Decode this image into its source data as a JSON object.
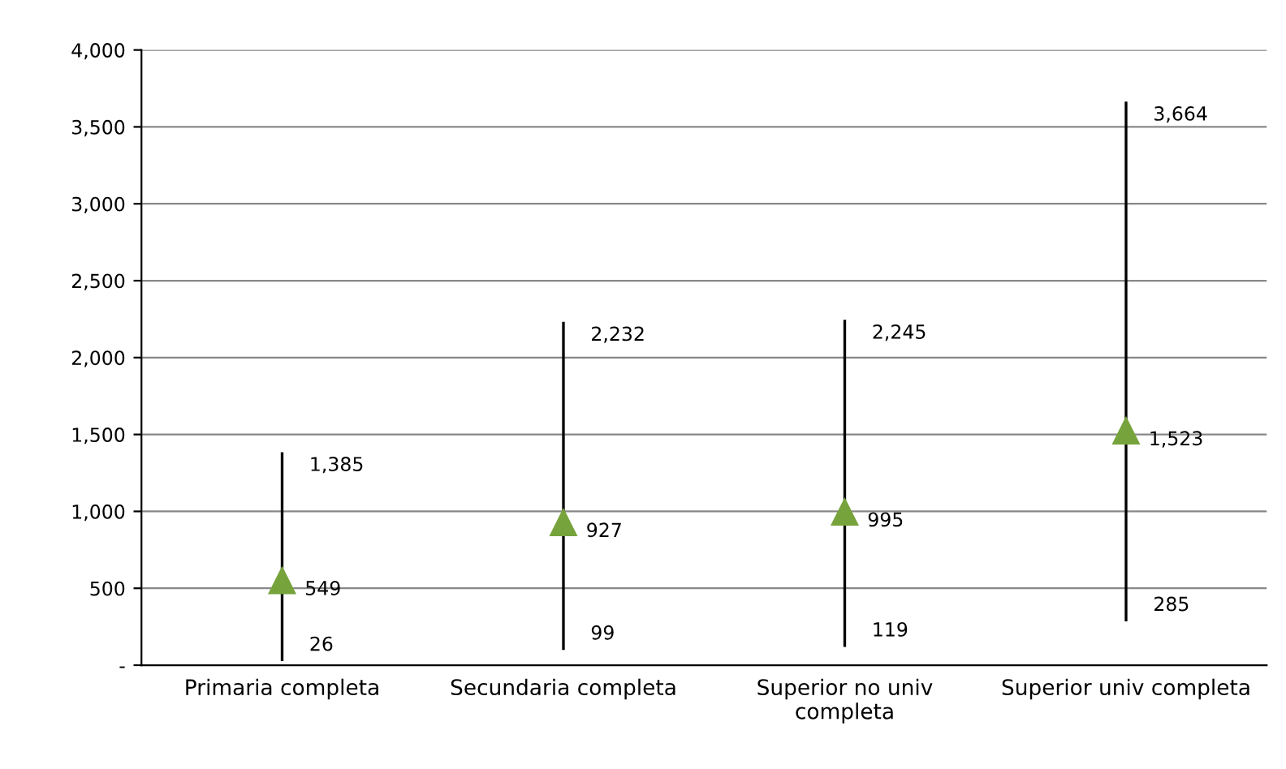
{
  "chart_data": {
    "type": "scatter",
    "categories": [
      "Primaria completa",
      "Secundaria completa",
      "Superior no univ\ncompleta",
      "Superior univ completa"
    ],
    "series": [
      {
        "color": "#77a33c",
        "marker": "triangle",
        "values": [
          549,
          927,
          995,
          1523
        ],
        "errors": [
          [
            26,
            1385
          ],
          [
            99,
            2232
          ],
          [
            119,
            2245
          ],
          [
            285,
            3664
          ]
        ],
        "value_labels": [
          "549",
          "927",
          "995",
          "1,523"
        ]
      }
    ],
    "annotations": [
      {
        "text": "1,385",
        "x": "Primaria completa",
        "y": 1385
      },
      {
        "text": "26",
        "x": "Primaria completa",
        "y": 26
      },
      {
        "text": "2,232",
        "x": "Secundaria completa",
        "y": 2232
      },
      {
        "text": "99",
        "x": "Secundaria completa",
        "y": 99
      },
      {
        "text": "2,245",
        "x": "Superior no univ\ncompleta",
        "y": 2245
      },
      {
        "text": "119",
        "x": "Superior no univ\ncompleta",
        "y": 119
      },
      {
        "text": "3,664",
        "x": "Superior univ completa",
        "y": 3664
      },
      {
        "text": "285",
        "x": "Superior univ completa",
        "y": 285
      }
    ],
    "ylim": [
      0,
      4000
    ],
    "yticks": [
      {
        "value": 0,
        "label": "-"
      },
      500,
      {
        "value": 1000,
        "label": "1,000"
      },
      {
        "value": 1500,
        "label": "1,500"
      },
      {
        "value": 2000,
        "label": "2,000"
      },
      {
        "value": 2500,
        "label": "2,500"
      },
      {
        "value": 3000,
        "label": "3,000"
      },
      {
        "value": 3500,
        "label": "3,500"
      },
      {
        "value": 4000,
        "label": "4,000"
      }
    ],
    "grid": "y",
    "legend": false
  }
}
